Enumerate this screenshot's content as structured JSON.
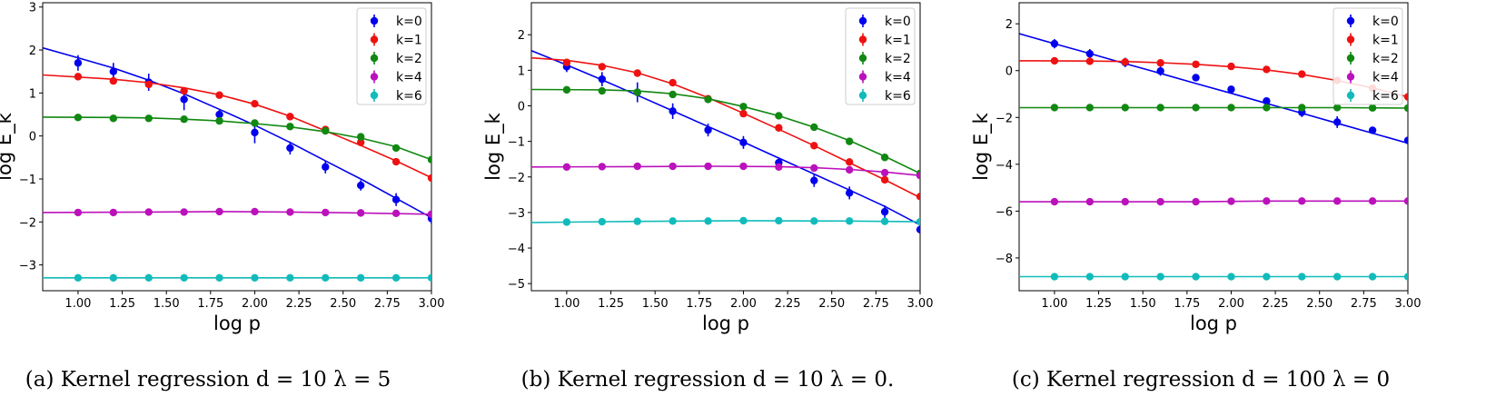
{
  "colors": {
    "k0": "#0000ee",
    "k1": "#ee1111",
    "k2": "#118811",
    "k4": "#bb11bb",
    "k6": "#11bbbb",
    "axis": "#000000",
    "background": "#ffffff"
  },
  "chart_data": [
    {
      "type": "line",
      "caption": "(a) Kernel regression d = 10 λ = 5",
      "xlabel": "log p",
      "ylabel": "log E_k",
      "xlim": [
        0.8,
        3.0
      ],
      "ylim": [
        -3.6,
        3.1
      ],
      "xticks": [
        "1.00",
        "1.25",
        "1.50",
        "1.75",
        "2.00",
        "2.25",
        "2.50",
        "2.75",
        "3.00"
      ],
      "yticks": [
        "3",
        "2",
        "1",
        "0",
        "−1",
        "−2",
        "−3"
      ],
      "legend": {
        "position": "top-right",
        "entries": [
          "k=0",
          "k=1",
          "k=2",
          "k=4",
          "k=6"
        ]
      },
      "x": [
        1.0,
        1.2,
        1.4,
        1.6,
        1.8,
        2.0,
        2.2,
        2.4,
        2.6,
        2.8,
        3.0
      ],
      "series": [
        {
          "name": "k=0",
          "points": [
            1.7,
            1.5,
            1.25,
            0.85,
            0.5,
            0.08,
            -0.28,
            -0.72,
            -1.15,
            -1.48,
            -1.92
          ],
          "errors": [
            0.18,
            0.2,
            0.2,
            0.25,
            0.12,
            0.25,
            0.15,
            0.15,
            0.12,
            0.15,
            0.12
          ],
          "line": [
            [
              0.8,
              2.05
            ],
            [
              1.0,
              1.82
            ],
            [
              1.2,
              1.58
            ],
            [
              1.4,
              1.3
            ],
            [
              1.6,
              0.98
            ],
            [
              1.8,
              0.62
            ],
            [
              2.0,
              0.25
            ],
            [
              2.2,
              -0.15
            ],
            [
              2.4,
              -0.58
            ],
            [
              2.6,
              -1.0
            ],
            [
              2.8,
              -1.45
            ],
            [
              3.0,
              -1.9
            ]
          ]
        },
        {
          "name": "k=1",
          "points": [
            1.38,
            1.28,
            1.2,
            1.05,
            0.95,
            0.75,
            0.45,
            0.15,
            -0.15,
            -0.6,
            -0.98
          ],
          "errors": [
            0.02,
            0.02,
            0.02,
            0.02,
            0.02,
            0.02,
            0.02,
            0.02,
            0.02,
            0.02,
            0.02
          ],
          "line": [
            [
              0.8,
              1.42
            ],
            [
              1.2,
              1.32
            ],
            [
              1.4,
              1.24
            ],
            [
              1.6,
              1.12
            ],
            [
              1.8,
              0.96
            ],
            [
              2.0,
              0.74
            ],
            [
              2.2,
              0.46
            ],
            [
              2.4,
              0.12
            ],
            [
              2.6,
              -0.22
            ],
            [
              2.8,
              -0.58
            ],
            [
              3.0,
              -0.97
            ]
          ]
        },
        {
          "name": "k=2",
          "points": [
            0.43,
            0.41,
            0.41,
            0.39,
            0.35,
            0.3,
            0.22,
            0.12,
            -0.02,
            -0.28,
            -0.55
          ],
          "errors": [
            0.02,
            0.02,
            0.02,
            0.02,
            0.02,
            0.02,
            0.02,
            0.02,
            0.02,
            0.02,
            0.02
          ],
          "line": [
            [
              0.8,
              0.44
            ],
            [
              1.2,
              0.43
            ],
            [
              1.4,
              0.42
            ],
            [
              1.6,
              0.39
            ],
            [
              1.8,
              0.35
            ],
            [
              2.0,
              0.29
            ],
            [
              2.2,
              0.21
            ],
            [
              2.4,
              0.1
            ],
            [
              2.6,
              -0.05
            ],
            [
              2.8,
              -0.25
            ],
            [
              3.0,
              -0.55
            ]
          ]
        },
        {
          "name": "k=4",
          "points": [
            -1.78,
            -1.78,
            -1.77,
            -1.77,
            -1.76,
            -1.76,
            -1.77,
            -1.78,
            -1.79,
            -1.8,
            -1.82
          ],
          "errors": [
            0.02,
            0.02,
            0.02,
            0.02,
            0.02,
            0.02,
            0.02,
            0.02,
            0.02,
            0.02,
            0.02
          ],
          "line": [
            [
              0.8,
              -1.78
            ],
            [
              1.4,
              -1.77
            ],
            [
              1.8,
              -1.76
            ],
            [
              2.2,
              -1.77
            ],
            [
              2.6,
              -1.79
            ],
            [
              3.0,
              -1.82
            ]
          ]
        },
        {
          "name": "k=6",
          "points": [
            -3.3,
            -3.3,
            -3.3,
            -3.3,
            -3.3,
            -3.3,
            -3.3,
            -3.3,
            -3.3,
            -3.3,
            -3.3
          ],
          "errors": [
            0.02,
            0.02,
            0.02,
            0.02,
            0.02,
            0.02,
            0.02,
            0.02,
            0.02,
            0.02,
            0.02
          ],
          "line": [
            [
              0.8,
              -3.3
            ],
            [
              3.0,
              -3.3
            ]
          ]
        }
      ]
    },
    {
      "type": "line",
      "caption": "(b) Kernel regression d = 10 λ = 0.",
      "xlabel": "log p",
      "ylabel": "log E_k",
      "xlim": [
        0.8,
        3.0
      ],
      "ylim": [
        -5.2,
        2.9
      ],
      "xticks": [
        "1.00",
        "1.25",
        "1.50",
        "1.75",
        "2.00",
        "2.25",
        "2.50",
        "2.75",
        "3.00"
      ],
      "yticks": [
        "2",
        "1",
        "0",
        "−1",
        "−2",
        "−3",
        "−4",
        "−5"
      ],
      "legend": {
        "position": "top-right",
        "entries": [
          "k=0",
          "k=1",
          "k=2",
          "k=4",
          "k=6"
        ]
      },
      "x": [
        1.0,
        1.2,
        1.4,
        1.6,
        1.8,
        2.0,
        2.2,
        2.4,
        2.6,
        2.8,
        3.0
      ],
      "series": [
        {
          "name": "k=0",
          "points": [
            1.1,
            0.75,
            0.38,
            -0.15,
            -0.68,
            -1.03,
            -1.6,
            -2.1,
            -2.45,
            -2.98,
            -3.48
          ],
          "errors": [
            0.15,
            0.2,
            0.28,
            0.22,
            0.18,
            0.18,
            0.15,
            0.18,
            0.18,
            0.18,
            0.12
          ],
          "line": [
            [
              0.8,
              1.55
            ],
            [
              1.0,
              1.15
            ],
            [
              1.2,
              0.73
            ],
            [
              1.4,
              0.3
            ],
            [
              1.6,
              -0.14
            ],
            [
              1.8,
              -0.58
            ],
            [
              2.0,
              -1.02
            ],
            [
              2.2,
              -1.47
            ],
            [
              2.4,
              -1.92
            ],
            [
              2.6,
              -2.37
            ],
            [
              2.8,
              -2.83
            ],
            [
              3.0,
              -3.35
            ],
            [
              3.0,
              -3.55
            ]
          ]
        },
        {
          "name": "k=1",
          "points": [
            1.22,
            1.1,
            0.92,
            0.65,
            0.2,
            -0.22,
            -0.62,
            -1.12,
            -1.58,
            -2.08,
            -2.55
          ],
          "errors": [
            0.02,
            0.02,
            0.02,
            0.02,
            0.02,
            0.02,
            0.02,
            0.02,
            0.02,
            0.02,
            0.02
          ],
          "line": [
            [
              0.8,
              1.35
            ],
            [
              1.0,
              1.28
            ],
            [
              1.2,
              1.14
            ],
            [
              1.4,
              0.93
            ],
            [
              1.6,
              0.62
            ],
            [
              1.8,
              0.23
            ],
            [
              2.0,
              -0.21
            ],
            [
              2.2,
              -0.66
            ],
            [
              2.4,
              -1.12
            ],
            [
              2.6,
              -1.6
            ],
            [
              2.8,
              -2.08
            ],
            [
              3.0,
              -2.58
            ]
          ]
        },
        {
          "name": "k=2",
          "points": [
            0.45,
            0.42,
            0.38,
            0.32,
            0.18,
            -0.02,
            -0.28,
            -0.6,
            -1.0,
            -1.45,
            -1.9
          ],
          "errors": [
            0.02,
            0.02,
            0.02,
            0.02,
            0.02,
            0.02,
            0.02,
            0.02,
            0.02,
            0.02,
            0.02
          ],
          "line": [
            [
              0.8,
              0.46
            ],
            [
              1.2,
              0.45
            ],
            [
              1.4,
              0.42
            ],
            [
              1.6,
              0.34
            ],
            [
              1.8,
              0.2
            ],
            [
              2.0,
              -0.02
            ],
            [
              2.2,
              -0.28
            ],
            [
              2.4,
              -0.6
            ],
            [
              2.6,
              -0.98
            ],
            [
              2.8,
              -1.42
            ],
            [
              3.0,
              -1.9
            ]
          ]
        },
        {
          "name": "k=4",
          "points": [
            -1.72,
            -1.71,
            -1.7,
            -1.7,
            -1.7,
            -1.7,
            -1.72,
            -1.75,
            -1.8,
            -1.88,
            -1.96
          ],
          "errors": [
            0.02,
            0.02,
            0.02,
            0.02,
            0.02,
            0.02,
            0.02,
            0.02,
            0.02,
            0.02,
            0.02
          ],
          "line": [
            [
              0.8,
              -1.72
            ],
            [
              1.4,
              -1.71
            ],
            [
              1.8,
              -1.7
            ],
            [
              2.2,
              -1.71
            ],
            [
              2.4,
              -1.74
            ],
            [
              2.6,
              -1.79
            ],
            [
              2.8,
              -1.86
            ],
            [
              3.0,
              -1.96
            ]
          ]
        },
        {
          "name": "k=6",
          "points": [
            -3.27,
            -3.26,
            -3.25,
            -3.24,
            -3.24,
            -3.23,
            -3.23,
            -3.24,
            -3.24,
            -3.25,
            -3.26
          ],
          "errors": [
            0.02,
            0.02,
            0.02,
            0.02,
            0.02,
            0.02,
            0.02,
            0.02,
            0.02,
            0.02,
            0.02
          ],
          "line": [
            [
              0.8,
              -3.28
            ],
            [
              1.4,
              -3.25
            ],
            [
              2.0,
              -3.23
            ],
            [
              2.6,
              -3.24
            ],
            [
              3.0,
              -3.26
            ]
          ]
        }
      ]
    },
    {
      "type": "line",
      "caption": "(c) Kernel regression d = 100 λ = 0",
      "xlabel": "log p",
      "ylabel": "log E_k",
      "xlim": [
        0.8,
        3.0
      ],
      "ylim": [
        -9.4,
        2.9
      ],
      "xticks": [
        "1.00",
        "1.25",
        "1.50",
        "1.75",
        "2.00",
        "2.25",
        "2.50",
        "2.75",
        "3.00"
      ],
      "yticks": [
        "2",
        "0",
        "−2",
        "−4",
        "−6",
        "−8"
      ],
      "legend": {
        "position": "top-right",
        "entries": [
          "k=0",
          "k=1",
          "k=2",
          "k=4",
          "k=6"
        ]
      },
      "x": [
        1.0,
        1.2,
        1.4,
        1.6,
        1.8,
        2.0,
        2.2,
        2.4,
        2.6,
        2.8,
        3.0
      ],
      "series": [
        {
          "name": "k=0",
          "points": [
            1.15,
            0.72,
            0.35,
            -0.02,
            -0.3,
            -0.8,
            -1.3,
            -1.78,
            -2.2,
            -2.55,
            -2.98
          ],
          "errors": [
            0.2,
            0.2,
            0.2,
            0.2,
            0.15,
            0.15,
            0.15,
            0.2,
            0.25,
            0.15,
            0.15
          ],
          "line": [
            [
              0.8,
              1.58
            ],
            [
              1.0,
              1.15
            ],
            [
              1.2,
              0.73
            ],
            [
              1.4,
              0.3
            ],
            [
              1.6,
              -0.12
            ],
            [
              1.8,
              -0.55
            ],
            [
              2.0,
              -0.97
            ],
            [
              2.2,
              -1.4
            ],
            [
              2.4,
              -1.82
            ],
            [
              2.6,
              -2.25
            ],
            [
              2.8,
              -2.67
            ],
            [
              3.0,
              -3.1
            ]
          ]
        },
        {
          "name": "k=1",
          "points": [
            0.42,
            0.4,
            0.37,
            0.33,
            0.27,
            0.18,
            0.05,
            -0.15,
            -0.42,
            -0.75,
            -1.12
          ],
          "errors": [
            0.02,
            0.02,
            0.02,
            0.02,
            0.02,
            0.02,
            0.02,
            0.02,
            0.02,
            0.02,
            0.02
          ],
          "line": [
            [
              0.8,
              0.42
            ],
            [
              1.2,
              0.41
            ],
            [
              1.4,
              0.39
            ],
            [
              1.6,
              0.34
            ],
            [
              1.8,
              0.27
            ],
            [
              2.0,
              0.17
            ],
            [
              2.2,
              0.03
            ],
            [
              2.4,
              -0.16
            ],
            [
              2.6,
              -0.42
            ],
            [
              2.8,
              -0.74
            ],
            [
              3.0,
              -1.12
            ]
          ]
        },
        {
          "name": "k=2",
          "points": [
            -1.58,
            -1.58,
            -1.58,
            -1.58,
            -1.58,
            -1.58,
            -1.58,
            -1.58,
            -1.58,
            -1.59,
            -1.6
          ],
          "errors": [
            0.02,
            0.02,
            0.02,
            0.02,
            0.02,
            0.02,
            0.02,
            0.02,
            0.02,
            0.02,
            0.02
          ],
          "line": [
            [
              0.8,
              -1.58
            ],
            [
              2.6,
              -1.58
            ],
            [
              3.0,
              -1.6
            ]
          ]
        },
        {
          "name": "k=4",
          "points": [
            -5.6,
            -5.6,
            -5.6,
            -5.6,
            -5.6,
            -5.58,
            -5.57,
            -5.57,
            -5.57,
            -5.57,
            -5.57
          ],
          "errors": [
            0.02,
            0.02,
            0.02,
            0.02,
            0.02,
            0.02,
            0.02,
            0.02,
            0.02,
            0.02,
            0.02
          ],
          "line": [
            [
              0.8,
              -5.6
            ],
            [
              1.8,
              -5.6
            ],
            [
              2.2,
              -5.57
            ],
            [
              3.0,
              -5.57
            ]
          ]
        },
        {
          "name": "k=6",
          "points": [
            -8.8,
            -8.8,
            -8.8,
            -8.8,
            -8.8,
            -8.8,
            -8.8,
            -8.8,
            -8.8,
            -8.8,
            -8.8
          ],
          "errors": [
            0.02,
            0.02,
            0.02,
            0.02,
            0.02,
            0.02,
            0.02,
            0.02,
            0.02,
            0.02,
            0.02
          ],
          "line": [
            [
              0.8,
              -8.8
            ],
            [
              3.0,
              -8.8
            ]
          ]
        }
      ]
    }
  ]
}
